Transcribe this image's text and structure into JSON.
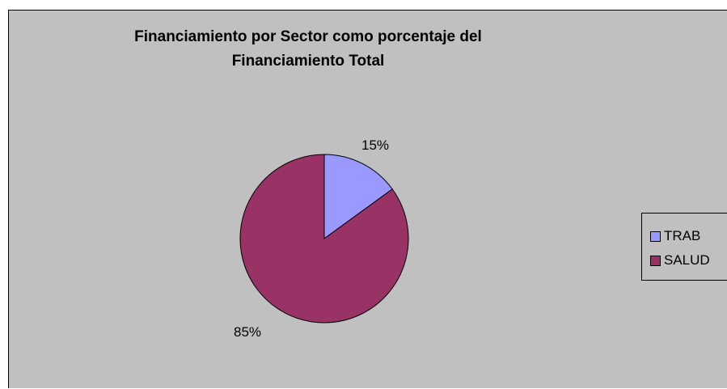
{
  "chart_data": {
    "type": "pie",
    "title": "Financiamiento por Sector como porcentaje del Financiamiento Total",
    "title_lines": [
      "Financiamiento por Sector como porcentaje del",
      "Financiamiento Total"
    ],
    "categories": [
      "TRAB",
      "SALUD"
    ],
    "values": [
      15,
      85
    ],
    "data_labels": [
      "15%",
      "85%"
    ],
    "colors": [
      "#9999ff",
      "#993366"
    ],
    "legend_position": "right",
    "background": "#c0c0c0"
  }
}
